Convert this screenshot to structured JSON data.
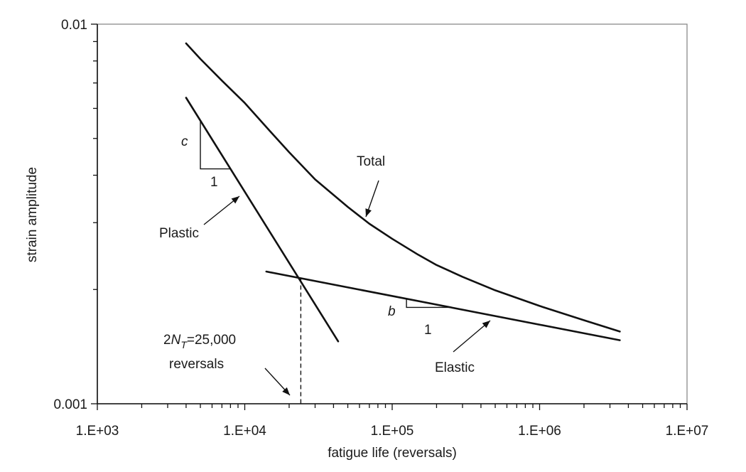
{
  "chart_data": {
    "type": "line",
    "title": "",
    "xlabel": "fatigue life (reversals)",
    "ylabel": "strain amplitude",
    "x_scale": "log",
    "y_scale": "log",
    "xlim": [
      1000,
      10000000
    ],
    "ylim": [
      0.001,
      0.01
    ],
    "x_tick_labels": [
      {
        "value": 1000,
        "label": "1.E+03"
      },
      {
        "value": 10000,
        "label": "1.E+04"
      },
      {
        "value": 100000,
        "label": "1.E+05"
      },
      {
        "value": 1000000,
        "label": "1.E+06"
      },
      {
        "value": 10000000,
        "label": "1.E+07"
      }
    ],
    "y_tick_labels": [
      {
        "value": 0.001,
        "label": "0.001"
      },
      {
        "value": 0.01,
        "label": "0.01"
      }
    ],
    "grid": false,
    "series": [
      {
        "name": "Total",
        "x": [
          4000,
          5000,
          7000,
          10000,
          15000,
          20000,
          30000,
          50000,
          70000,
          100000,
          150000,
          200000,
          300000,
          500000,
          1000000,
          2000000,
          3500000
        ],
        "y": [
          0.0089,
          0.0081,
          0.0071,
          0.0062,
          0.0052,
          0.0046,
          0.0039,
          0.0033,
          0.00298,
          0.00272,
          0.00247,
          0.00232,
          0.00216,
          0.00199,
          0.00181,
          0.00166,
          0.00155
        ]
      },
      {
        "name": "Plastic",
        "x": [
          4000,
          43000
        ],
        "y": [
          0.0064,
          0.00146
        ]
      },
      {
        "name": "Elastic",
        "x": [
          14000,
          3500000
        ],
        "y": [
          0.00223,
          0.00147
        ]
      }
    ],
    "annotations": {
      "total_label": "Total",
      "plastic_label": "Plastic",
      "elastic_label": "Elastic",
      "plastic_slope_symbol": "c",
      "plastic_slope_run": "1",
      "elastic_slope_symbol": "b",
      "elastic_slope_run": "1",
      "transition_prefix": "2",
      "transition_var": "N",
      "transition_sub": "T",
      "transition_value": "=25,000",
      "transition_unit": "reversals",
      "transition_x": 24000
    }
  }
}
